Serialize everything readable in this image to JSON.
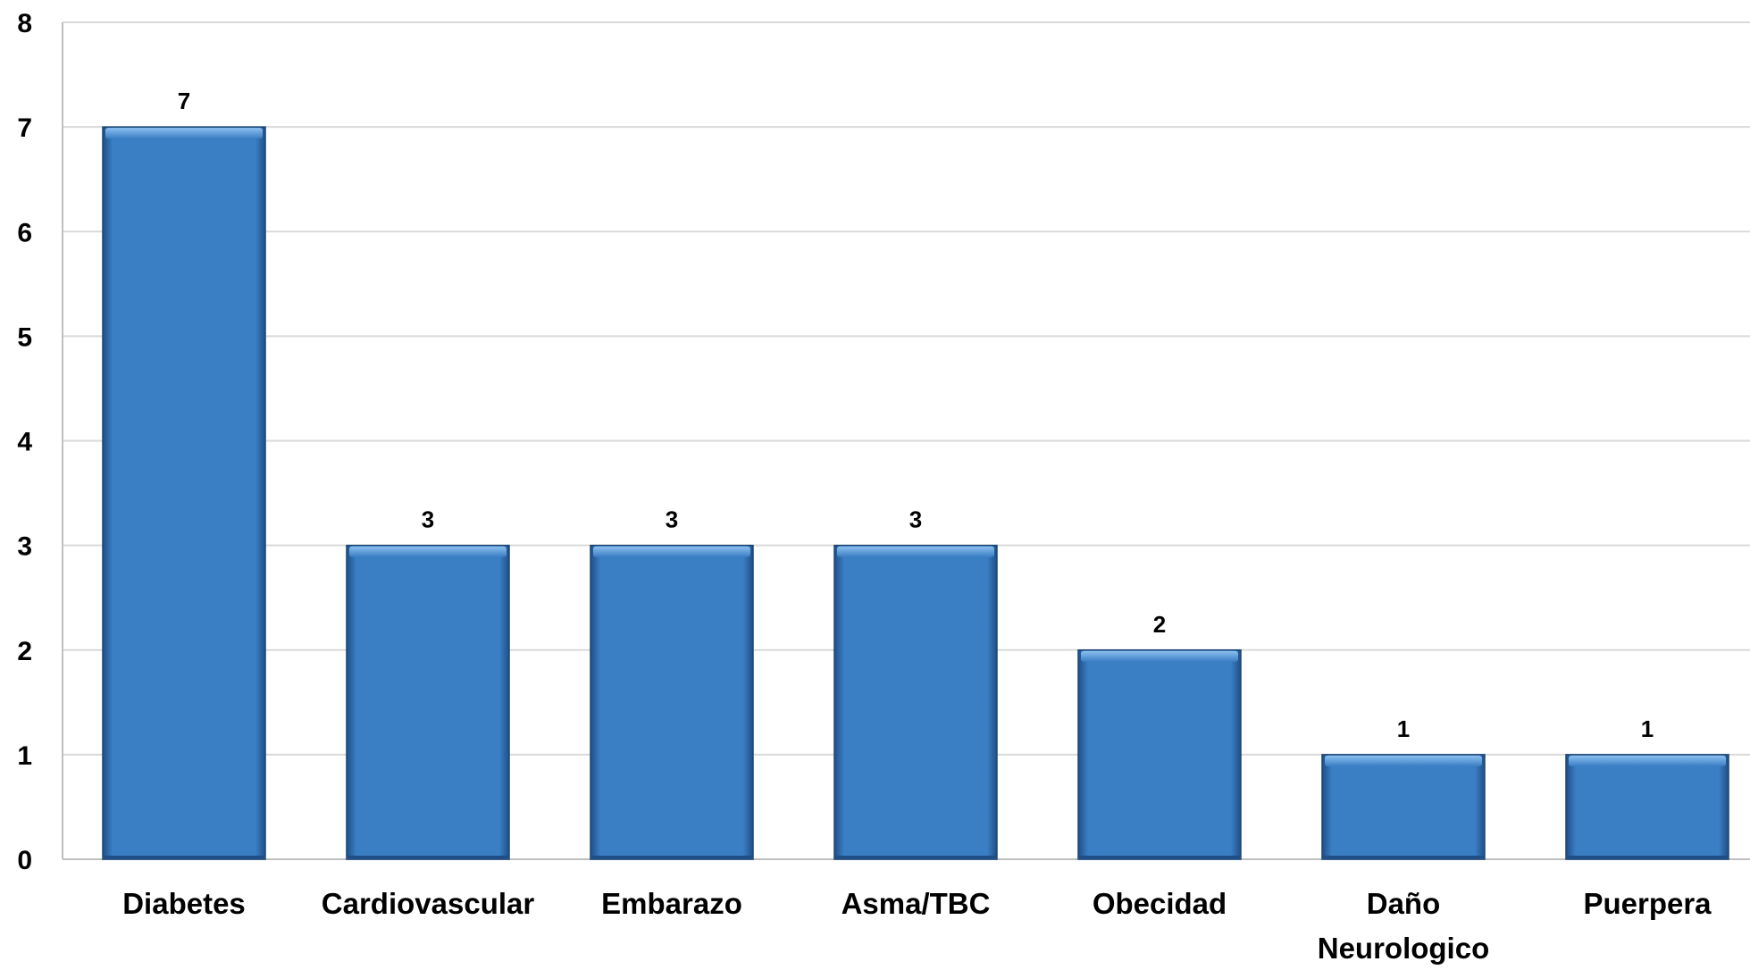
{
  "chart_data": {
    "type": "bar",
    "categories": [
      "Diabetes",
      "Cardiovascular",
      "Embarazo",
      "Asma/TBC",
      "Obecidad",
      "Daño Neurologico",
      "Puerpera"
    ],
    "category_lines": [
      [
        "Diabetes"
      ],
      [
        "Cardiovascular"
      ],
      [
        "Embarazo"
      ],
      [
        "Asma/TBC"
      ],
      [
        "Obecidad"
      ],
      [
        "Daño",
        "Neurologico"
      ],
      [
        "Puerpera"
      ]
    ],
    "values": [
      7,
      3,
      3,
      3,
      2,
      1,
      1
    ],
    "data_labels": [
      "7",
      "3",
      "3",
      "3",
      "2",
      "1",
      "1"
    ],
    "y_ticks": [
      "0",
      "1",
      "2",
      "3",
      "4",
      "5",
      "6",
      "7",
      "8"
    ],
    "ylim": [
      0,
      8
    ],
    "grid": true,
    "legend": false,
    "colors": {
      "bar": "#3a7ec4",
      "bar_light": "#5c9ee0",
      "bar_dark": "#1f4f86",
      "grid": "#d9d9d9",
      "axis": "#bfbfbf"
    }
  }
}
